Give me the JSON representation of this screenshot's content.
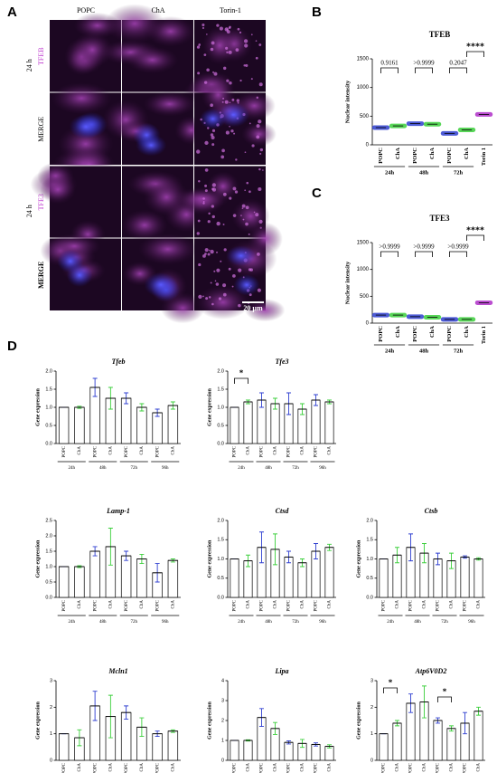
{
  "panel_a": {
    "label": "A",
    "columns": [
      "POPC",
      "ChA",
      "Torin-1"
    ],
    "rows": [
      "TFEB",
      "MERGE",
      "TFE3",
      "MERGE"
    ],
    "times": [
      "24 h",
      "24 h"
    ],
    "scale_bar": "20 µm"
  },
  "panel_labels": [
    "B",
    "C",
    "D"
  ],
  "chart_data": [
    {
      "type": "dot",
      "title": "TFEB",
      "ylabel": "Nuclear intensity",
      "categories": [
        "POPC",
        "ChA",
        "POPC",
        "ChA",
        "POPC",
        "ChA",
        "Torin 1"
      ],
      "groups": [
        "24h",
        "48h",
        "72h"
      ],
      "values": [
        300,
        330,
        370,
        360,
        200,
        260,
        530
      ],
      "colors": [
        "#2f3fd0",
        "#3ccf3c",
        "#2f3fd0",
        "#3ccf3c",
        "#2f3fd0",
        "#3ccf3c",
        "#b030c8"
      ],
      "ylim": [
        0,
        1500
      ],
      "yticks": [
        0,
        500,
        1000,
        1500
      ],
      "annotations": [
        "0.9161",
        ">0.9999",
        "0.2047",
        "****"
      ]
    },
    {
      "type": "dot",
      "title": "TFE3",
      "ylabel": "Nuclear intensity",
      "categories": [
        "POPC",
        "ChA",
        "POPC",
        "ChA",
        "POPC",
        "ChA",
        "Torin 1"
      ],
      "groups": [
        "24h",
        "48h",
        "72h"
      ],
      "values": [
        150,
        150,
        120,
        110,
        70,
        70,
        380
      ],
      "colors": [
        "#2f3fd0",
        "#3ccf3c",
        "#2f3fd0",
        "#3ccf3c",
        "#2f3fd0",
        "#3ccf3c",
        "#b030c8"
      ],
      "ylim": [
        0,
        1500
      ],
      "yticks": [
        0,
        500,
        1000,
        1500
      ],
      "annotations": [
        ">0.9999",
        ">0.9999",
        ">0.9999",
        "****"
      ]
    },
    {
      "type": "bar",
      "title": "Tfeb",
      "ylabel": "Gene expression",
      "categories": [
        "POPC",
        "ChA",
        "POPC",
        "ChA",
        "POPC",
        "ChA",
        "POPC",
        "ChA"
      ],
      "groups": [
        "24h",
        "48h",
        "72h",
        "96h"
      ],
      "values": [
        1.0,
        1.0,
        1.55,
        1.25,
        1.25,
        1.0,
        0.85,
        1.05
      ],
      "errors": [
        0.0,
        0.03,
        0.25,
        0.3,
        0.15,
        0.1,
        0.1,
        0.1
      ],
      "colors": [
        "#2f3fd0",
        "#3ccf3c"
      ],
      "ylim": [
        0,
        2
      ],
      "yticks": [
        {
          "value": 0,
          "label": "0.0"
        },
        {
          "value": 0.5,
          "label": "0.5"
        },
        {
          "value": 1,
          "label": "1.0"
        },
        {
          "value": 1.5,
          "label": "1.5"
        },
        {
          "value": 2,
          "label": "2.0"
        }
      ]
    },
    {
      "type": "bar",
      "title": "Tfe3",
      "ylabel": "Gene expression",
      "categories": [
        "POPC",
        "ChA",
        "POPC",
        "ChA",
        "POPC",
        "ChA",
        "POPC",
        "ChA"
      ],
      "groups": [
        "24h",
        "48h",
        "72h",
        "96h"
      ],
      "values": [
        1.0,
        1.15,
        1.2,
        1.1,
        1.1,
        0.95,
        1.2,
        1.15
      ],
      "errors": [
        0.0,
        0.05,
        0.2,
        0.15,
        0.3,
        0.15,
        0.15,
        0.05
      ],
      "colors": [
        "#2f3fd0",
        "#3ccf3c"
      ],
      "ylim": [
        0,
        2
      ],
      "yticks": [
        {
          "value": 0,
          "label": "0.0"
        },
        {
          "value": 0.5,
          "label": "0.5"
        },
        {
          "value": 1,
          "label": "1.0"
        },
        {
          "value": 1.5,
          "label": "1.5"
        },
        {
          "value": 2,
          "label": "2.0"
        }
      ],
      "annotations": [
        "*"
      ]
    },
    {
      "type": "bar",
      "title": "Lamp-1",
      "ylabel": "Gene expression",
      "categories": [
        "POPC",
        "ChA",
        "POPC",
        "ChA",
        "POPC",
        "ChA",
        "POPC",
        "ChA"
      ],
      "groups": [
        "24h",
        "48h",
        "72h",
        "96h"
      ],
      "values": [
        1.0,
        1.0,
        1.5,
        1.65,
        1.35,
        1.25,
        0.8,
        1.2
      ],
      "errors": [
        0.0,
        0.03,
        0.15,
        0.6,
        0.15,
        0.15,
        0.3,
        0.05
      ],
      "colors": [
        "#2f3fd0",
        "#3ccf3c"
      ],
      "ylim": [
        0,
        2.5
      ],
      "yticks": [
        {
          "value": 0,
          "label": "0.0"
        },
        {
          "value": 0.5,
          "label": "0.5"
        },
        {
          "value": 1,
          "label": "1.0"
        },
        {
          "value": 1.5,
          "label": "1.5"
        },
        {
          "value": 2,
          "label": "2.0"
        },
        {
          "value": 2.5,
          "label": "2.5"
        }
      ]
    },
    {
      "type": "bar",
      "title": "Ctsd",
      "ylabel": "Gene expression",
      "categories": [
        "POPC",
        "ChA",
        "POPC",
        "ChA",
        "POPC",
        "ChA",
        "POPC",
        "ChA"
      ],
      "groups": [
        "24h",
        "48h",
        "72h",
        "96h"
      ],
      "values": [
        1.0,
        0.95,
        1.3,
        1.25,
        1.05,
        0.9,
        1.2,
        1.3
      ],
      "errors": [
        0.0,
        0.15,
        0.4,
        0.4,
        0.15,
        0.1,
        0.2,
        0.08
      ],
      "colors": [
        "#2f3fd0",
        "#3ccf3c"
      ],
      "ylim": [
        0,
        2
      ],
      "yticks": [
        {
          "value": 0,
          "label": "0.0"
        },
        {
          "value": 0.5,
          "label": "0.5"
        },
        {
          "value": 1,
          "label": "1.0"
        },
        {
          "value": 1.5,
          "label": "1.5"
        },
        {
          "value": 2,
          "label": "2.0"
        }
      ]
    },
    {
      "type": "bar",
      "title": "Ctsb",
      "ylabel": "Gene expression",
      "categories": [
        "POPC",
        "ChA",
        "POPC",
        "ChA",
        "POPC",
        "ChA",
        "POPC",
        "ChA"
      ],
      "groups": [
        "24h",
        "48h",
        "72h",
        "96h"
      ],
      "values": [
        1.0,
        1.1,
        1.3,
        1.15,
        1.0,
        0.95,
        1.05,
        1.0
      ],
      "errors": [
        0.0,
        0.2,
        0.35,
        0.25,
        0.15,
        0.2,
        0.03,
        0.03
      ],
      "colors": [
        "#2f3fd0",
        "#3ccf3c"
      ],
      "ylim": [
        0,
        2
      ],
      "yticks": [
        {
          "value": 0,
          "label": "0.0"
        },
        {
          "value": 0.5,
          "label": "0.5"
        },
        {
          "value": 1,
          "label": "1.0"
        },
        {
          "value": 1.5,
          "label": "1.5"
        },
        {
          "value": 2,
          "label": "2.0"
        }
      ]
    },
    {
      "type": "bar",
      "title": "Mcln1",
      "ylabel": "Gene expression",
      "categories": [
        "POPC",
        "ChA",
        "POPC",
        "ChA",
        "POPC",
        "ChA",
        "POPC",
        "ChA"
      ],
      "groups": [
        "24h",
        "48h",
        "72h",
        "96h"
      ],
      "values": [
        1.0,
        0.85,
        2.05,
        1.65,
        1.8,
        1.25,
        1.0,
        1.1
      ],
      "errors": [
        0.0,
        0.3,
        0.55,
        0.8,
        0.25,
        0.35,
        0.1,
        0.05
      ],
      "colors": [
        "#2f3fd0",
        "#3ccf3c"
      ],
      "ylim": [
        0,
        3
      ],
      "yticks": [
        0,
        1,
        2,
        3
      ]
    },
    {
      "type": "bar",
      "title": "Lipa",
      "ylabel": "Gene expression",
      "categories": [
        "POPC",
        "ChA",
        "POPC",
        "ChA",
        "POPC",
        "ChA",
        "POPC",
        "ChA"
      ],
      "groups": [
        "24h",
        "48h",
        "72h",
        "96h"
      ],
      "values": [
        1.0,
        1.0,
        2.15,
        1.6,
        0.9,
        0.85,
        0.8,
        0.7
      ],
      "errors": [
        0.0,
        0.03,
        0.45,
        0.3,
        0.08,
        0.2,
        0.08,
        0.08
      ],
      "colors": [
        "#2f3fd0",
        "#3ccf3c"
      ],
      "ylim": [
        0,
        4
      ],
      "yticks": [
        0,
        1,
        2,
        3,
        4
      ]
    },
    {
      "type": "bar",
      "title": "Atp6V0D2",
      "ylabel": "Gene expression",
      "categories": [
        "POPC",
        "ChA",
        "POPC",
        "ChA",
        "POPC",
        "ChA",
        "POPC",
        "ChA"
      ],
      "groups": [
        "24h",
        "48h",
        "72h",
        "96h"
      ],
      "values": [
        1.0,
        1.4,
        2.15,
        2.2,
        1.5,
        1.2,
        1.4,
        1.85
      ],
      "errors": [
        0.0,
        0.1,
        0.35,
        0.6,
        0.1,
        0.1,
        0.4,
        0.15
      ],
      "colors": [
        "#2f3fd0",
        "#3ccf3c"
      ],
      "ylim": [
        0,
        3
      ],
      "yticks": [
        0,
        1,
        2,
        3
      ],
      "annotations": [
        "*",
        "*"
      ]
    }
  ]
}
